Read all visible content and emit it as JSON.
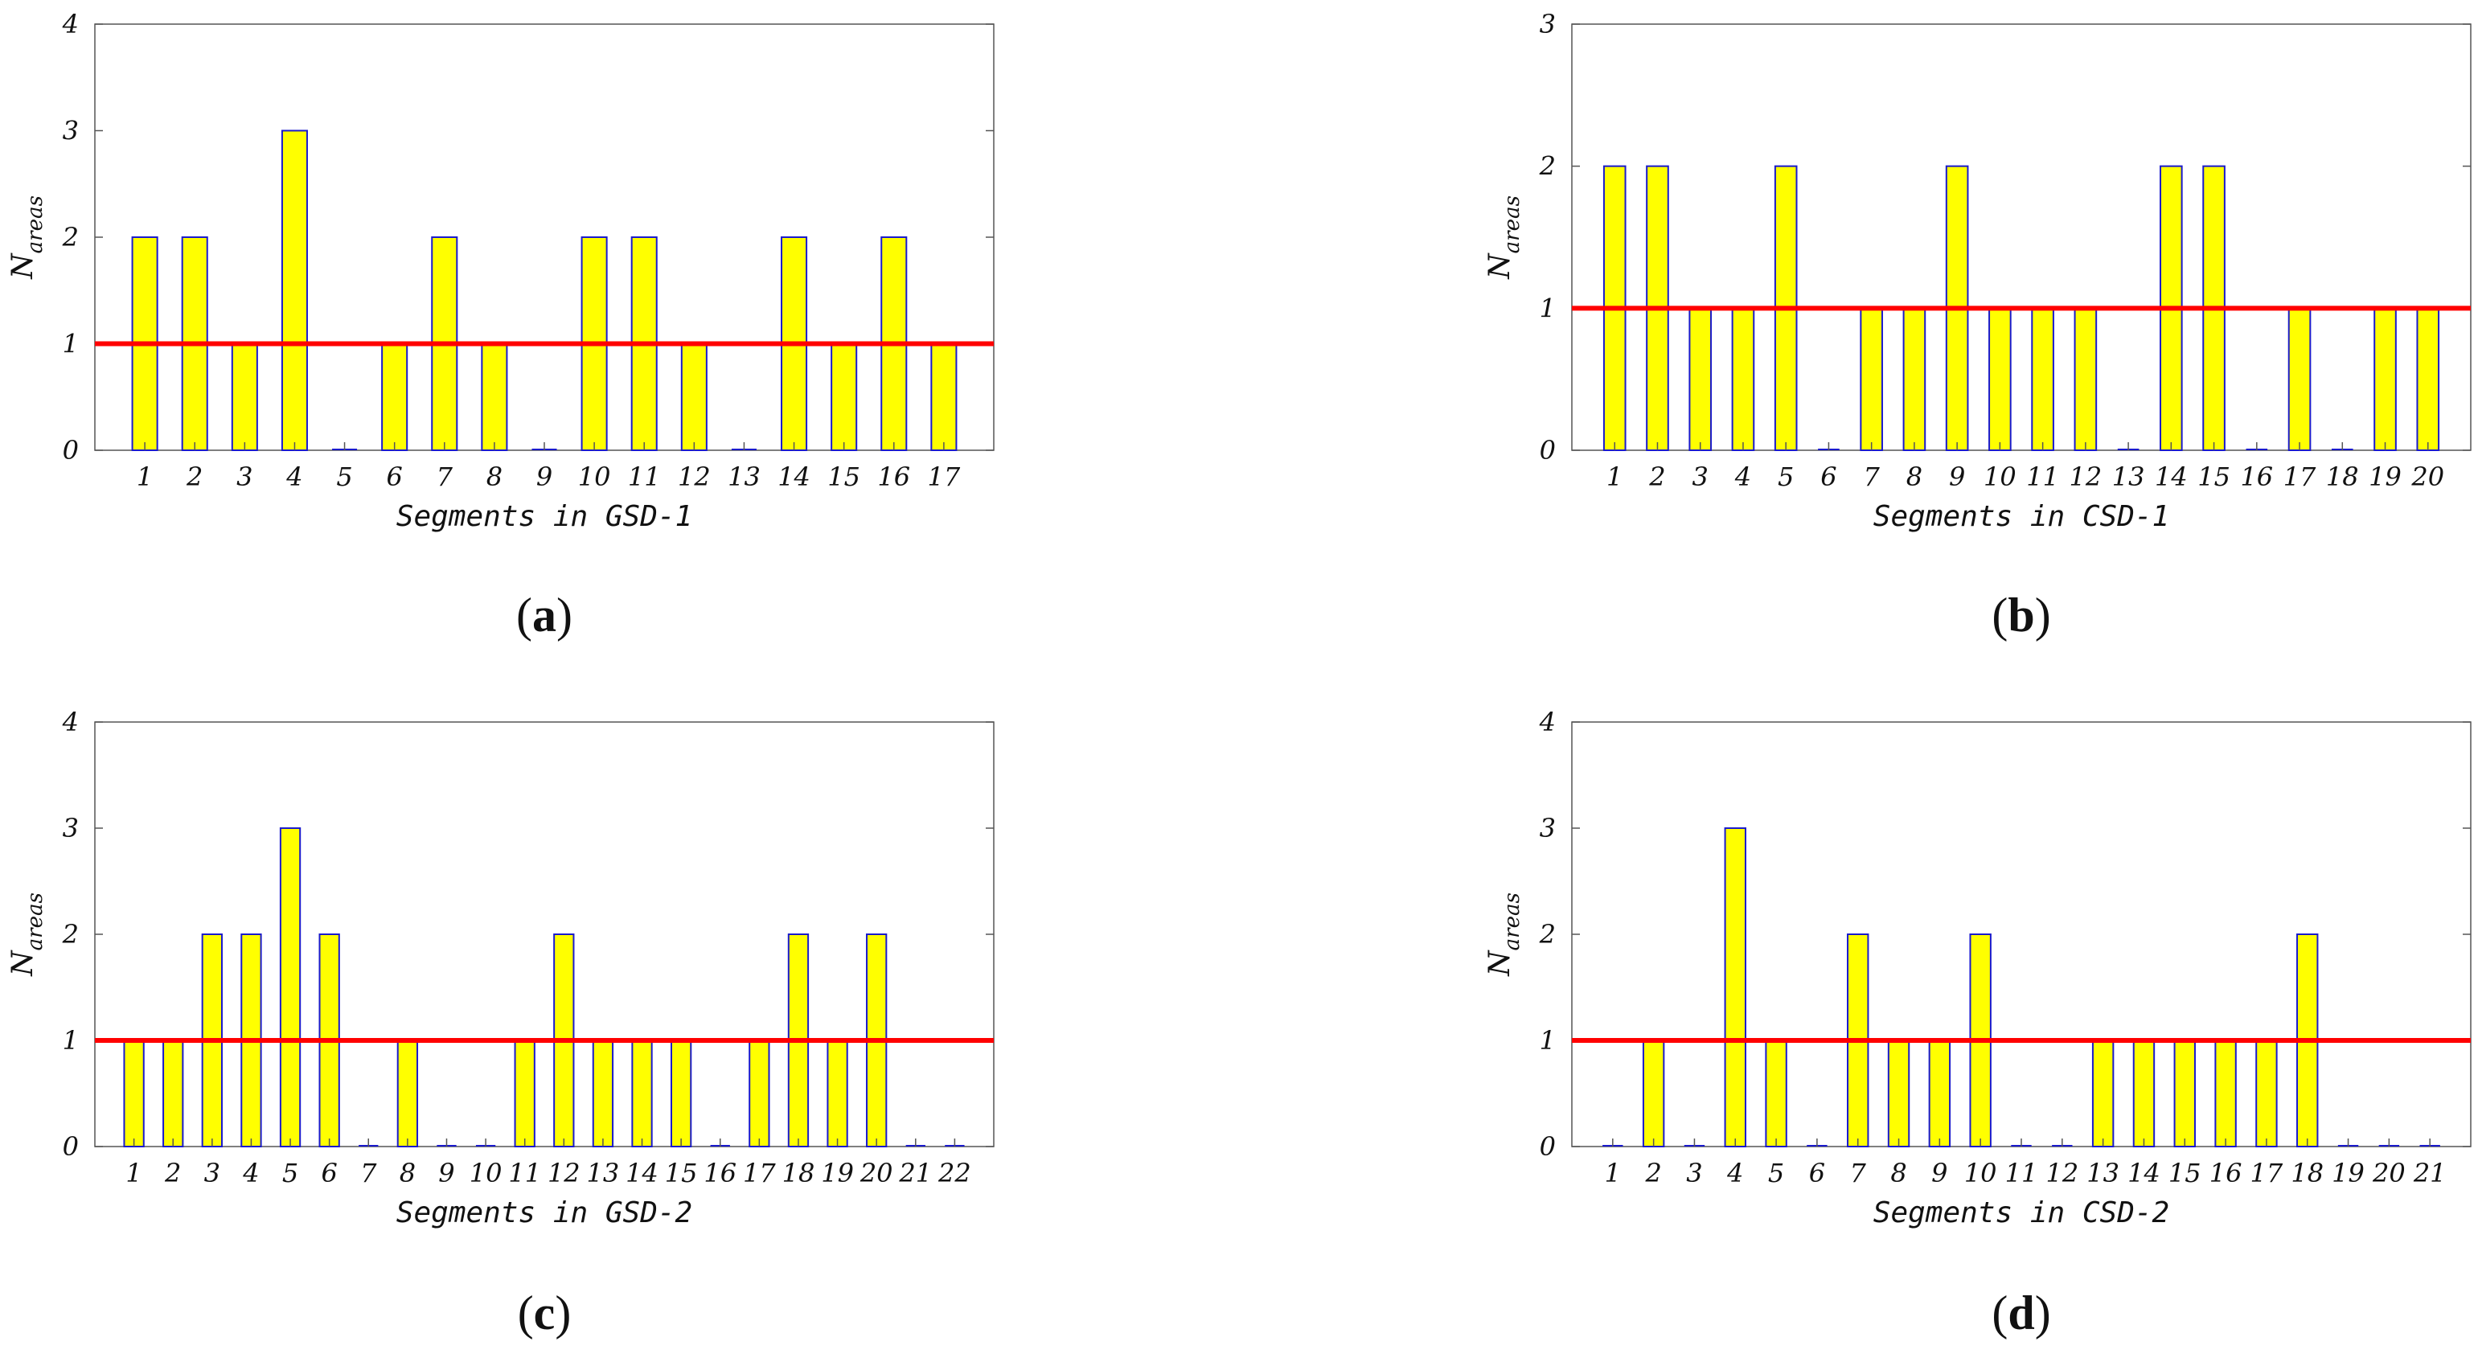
{
  "colors": {
    "bar_fill": "#ffff00",
    "bar_edge": "#1a1acc",
    "threshold_line": "#ff0000",
    "axes": "#555555",
    "text": "#111111"
  },
  "ylabel_main": "N",
  "ylabel_sub": "areas",
  "chart_data": [
    {
      "type": "bar",
      "panel_label": "a",
      "xlabel": "Segments in GSD-1",
      "ylim": [
        0,
        4
      ],
      "yticks": [
        "0",
        "1",
        "2",
        "3",
        "4"
      ],
      "categories": [
        "1",
        "2",
        "3",
        "4",
        "5",
        "6",
        "7",
        "8",
        "9",
        "10",
        "11",
        "12",
        "13",
        "14",
        "15",
        "16",
        "17"
      ],
      "values": [
        2,
        2,
        1,
        3,
        0,
        1,
        2,
        1,
        0,
        2,
        2,
        1,
        0,
        2,
        1,
        2,
        1
      ],
      "threshold": 1
    },
    {
      "type": "bar",
      "panel_label": "b",
      "xlabel": "Segments in CSD-1",
      "ylim": [
        0,
        3
      ],
      "yticks": [
        "0",
        "1",
        "2",
        "3"
      ],
      "categories": [
        "1",
        "2",
        "3",
        "4",
        "5",
        "6",
        "7",
        "8",
        "9",
        "10",
        "11",
        "12",
        "13",
        "14",
        "15",
        "16",
        "17",
        "18",
        "19",
        "20"
      ],
      "values": [
        2,
        2,
        1,
        1,
        2,
        0,
        1,
        1,
        2,
        1,
        1,
        1,
        0,
        2,
        2,
        0,
        1,
        0,
        1,
        1
      ],
      "threshold": 1
    },
    {
      "type": "bar",
      "panel_label": "c",
      "xlabel": "Segments in GSD-2",
      "ylim": [
        0,
        4
      ],
      "yticks": [
        "0",
        "1",
        "2",
        "3",
        "4"
      ],
      "categories": [
        "1",
        "2",
        "3",
        "4",
        "5",
        "6",
        "7",
        "8",
        "9",
        "10",
        "11",
        "12",
        "13",
        "14",
        "15",
        "16",
        "17",
        "18",
        "19",
        "20",
        "21",
        "22"
      ],
      "values": [
        1,
        1,
        2,
        2,
        3,
        2,
        0,
        1,
        0,
        0,
        1,
        2,
        1,
        1,
        1,
        0,
        1,
        2,
        1,
        2,
        0,
        0
      ],
      "threshold": 1
    },
    {
      "type": "bar",
      "panel_label": "d",
      "xlabel": "Segments in CSD-2",
      "ylim": [
        0,
        4
      ],
      "yticks": [
        "0",
        "1",
        "2",
        "3",
        "4"
      ],
      "categories": [
        "1",
        "2",
        "3",
        "4",
        "5",
        "6",
        "7",
        "8",
        "9",
        "10",
        "11",
        "12",
        "13",
        "14",
        "15",
        "16",
        "17",
        "18",
        "19",
        "20",
        "21"
      ],
      "values": [
        0,
        1,
        0,
        3,
        1,
        0,
        2,
        1,
        1,
        2,
        0,
        0,
        1,
        1,
        1,
        1,
        1,
        2,
        0,
        0,
        0
      ],
      "threshold": 1
    }
  ]
}
